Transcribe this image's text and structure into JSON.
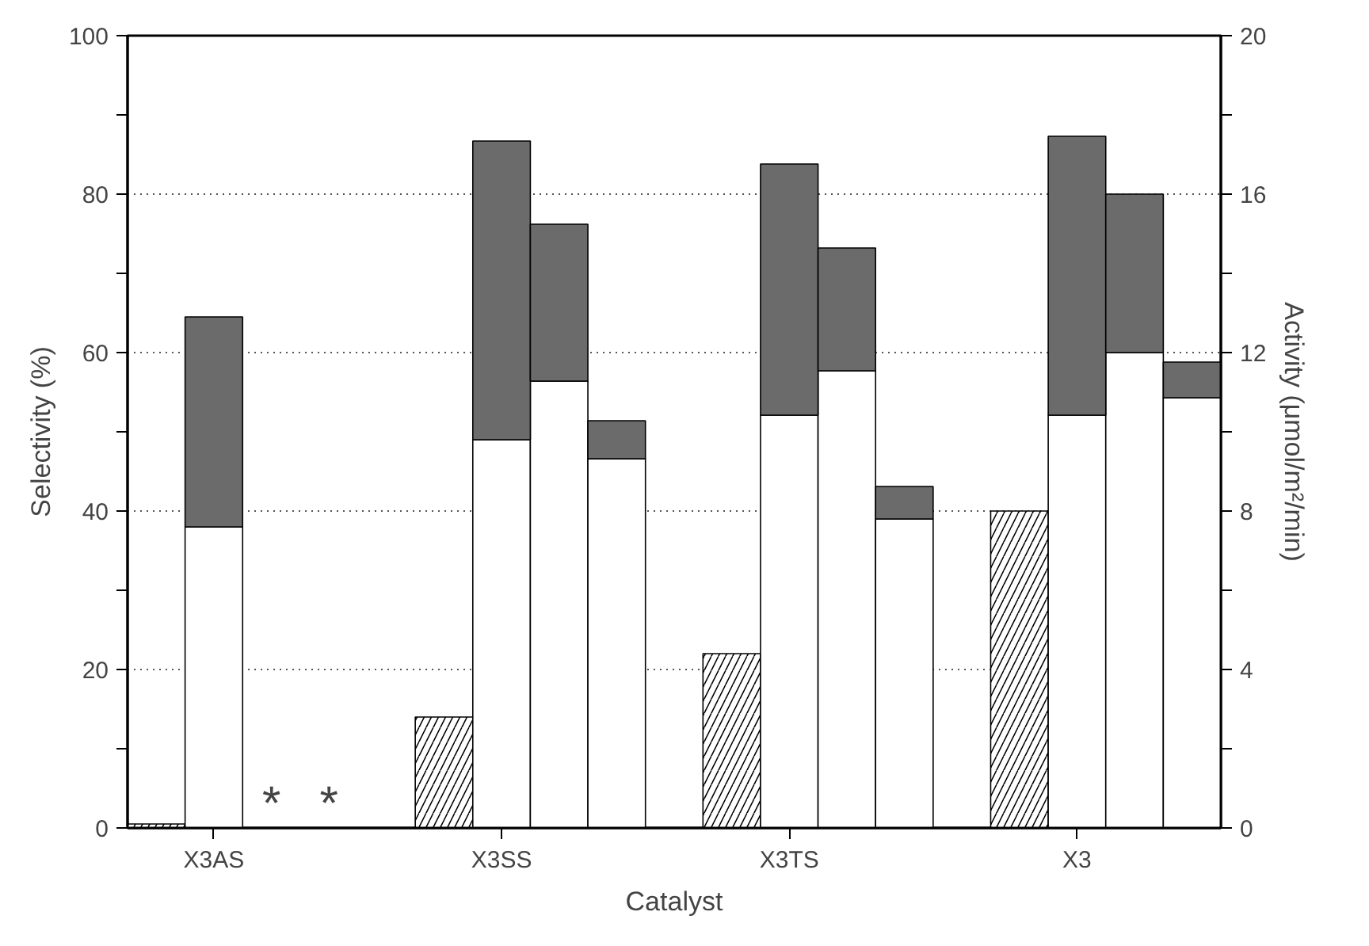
{
  "chart_data": {
    "type": "bar",
    "xlabel": "Catalyst",
    "ylabel": "Selectivity (%)",
    "y2label": "Activity (μmol/m²/min)",
    "categories": [
      null,
      "X3AS",
      null,
      null,
      null,
      null,
      "X3SS",
      null,
      null,
      null,
      null,
      "X3TS",
      null,
      null,
      null,
      null,
      "X3",
      null,
      null
    ],
    "ylim": [
      0,
      100
    ],
    "yticks": [
      0,
      {
        "value": 10,
        "label": null
      },
      20,
      {
        "value": 30,
        "label": null
      },
      40,
      {
        "value": 50,
        "label": null
      },
      60,
      {
        "value": 70,
        "label": null
      },
      80,
      {
        "value": 90,
        "label": null
      },
      100
    ],
    "y2lim": [
      0,
      20
    ],
    "y2ticks": [
      0,
      {
        "value": 2,
        "label": null
      },
      4,
      {
        "value": 6,
        "label": null
      },
      8,
      {
        "value": 10,
        "label": null
      },
      12,
      {
        "value": 14,
        "label": null
      },
      16,
      {
        "value": 18,
        "label": null
      },
      20
    ],
    "stacked": true,
    "grid": "y",
    "series": [
      {
        "color": "#ffffff",
        "axis": "y2",
        "values": [
          0.1,
          null,
          null,
          null,
          null,
          2.8,
          null,
          null,
          null,
          null,
          4.4,
          null,
          null,
          null,
          null,
          8.0,
          null,
          null,
          null
        ]
      },
      {
        "color": "#ffffff",
        "values": [
          null,
          38,
          null,
          null,
          null,
          null,
          49,
          56.4,
          46.6,
          null,
          null,
          52.1,
          57.7,
          39,
          null,
          null,
          52.1,
          60,
          54.3
        ]
      },
      {
        "color": "#6b6b6b",
        "values": [
          null,
          26.5,
          null,
          null,
          null,
          null,
          37.7,
          19.8,
          4.8,
          null,
          null,
          31.7,
          15.5,
          4.1,
          null,
          null,
          35.2,
          20,
          4.5
        ]
      }
    ],
    "annotations": [
      "*",
      "*"
    ]
  }
}
